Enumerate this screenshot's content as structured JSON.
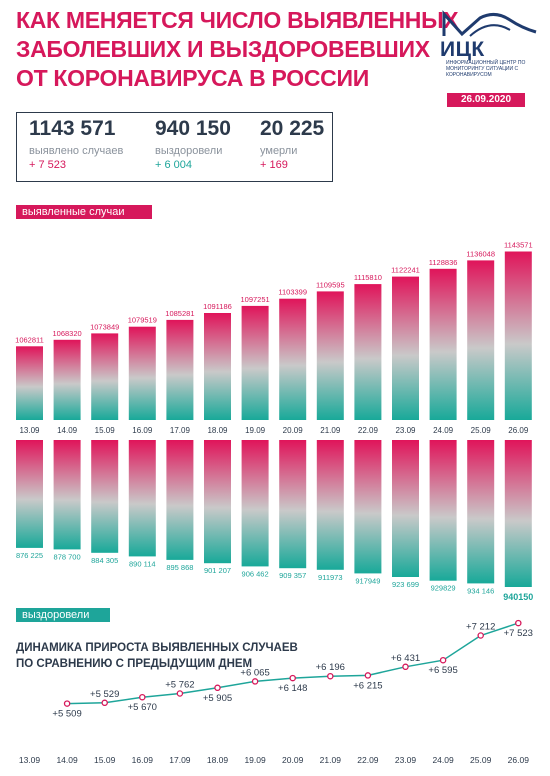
{
  "header": {
    "title_lines": [
      "КАК МЕНЯЕТСЯ ЧИСЛО ВЫЯВЛЕННЫХ",
      "ЗАБОЛЕВШИХ И ВЫЗДОРОВЕВШИХ",
      "ОТ КОРОНАВИРУСА В РОССИИ"
    ],
    "logo_text": "ИЦК",
    "logo_subtitle": "ИНФОРМАЦИОННЫЙ ЦЕНТР ПО МОНИТОРИНГУ СИТУАЦИИ С КОРОНАВИРУСОМ",
    "date": "26.09.2020"
  },
  "stats": [
    {
      "value": "1143 571",
      "label": "выявлено случаев",
      "delta": "+ 7 523",
      "delta_color": "#d6185b"
    },
    {
      "value": "940 150",
      "label": "выздоровели",
      "delta": "+ 6 004",
      "delta_color": "#1ea59a"
    },
    {
      "value": "20 225",
      "label": "умерли",
      "delta": "+ 169",
      "delta_color": "#d6185b"
    }
  ],
  "tags": {
    "cases": "выявленные случаи",
    "recovered": "выздоровели"
  },
  "subtitle_lines": [
    "ДИНАМИКА ПРИРОСТА ВЫЯВЛЕННЫХ СЛУЧАЕВ",
    "ПО СРАВНЕНИЮ С ПРЕДЫДУЩИМ ДНЕМ"
  ],
  "colors": {
    "pink": "#d6185b",
    "teal": "#1ea59a",
    "dark": "#2d3a4b"
  },
  "chart_data": [
    {
      "type": "bar",
      "categories": [
        "13.09",
        "14.09",
        "15.09",
        "16.09",
        "17.09",
        "18.09",
        "19.09",
        "20.09",
        "21.09",
        "22.09",
        "23.09",
        "24.09",
        "25.09",
        "26.09"
      ],
      "values": [
        1062811,
        1068320,
        1073849,
        1079519,
        1085281,
        1091186,
        1097251,
        1103399,
        1109595,
        1115810,
        1122241,
        1128836,
        1136048,
        1143571
      ],
      "value_labels": [
        "1062811",
        "1068320",
        "1073849",
        "1079519",
        "1085281",
        "1091186",
        "1097251",
        "1103399",
        "1109595",
        "1115810",
        "1122241",
        "1128836",
        "1136048",
        "1143571"
      ],
      "series_label": "выявленные случаи"
    },
    {
      "type": "bar",
      "categories": [
        "13.09",
        "14.09",
        "15.09",
        "16.09",
        "17.09",
        "18.09",
        "19.09",
        "20.09",
        "21.09",
        "22.09",
        "23.09",
        "24.09",
        "25.09",
        "26.09"
      ],
      "values": [
        876225,
        878700,
        884305,
        890114,
        895868,
        901207,
        906462,
        909357,
        911973,
        917949,
        923699,
        929829,
        934146,
        940150
      ],
      "value_labels": [
        "876 225",
        "878 700",
        "884 305",
        "890 114",
        "895 868",
        "901 207",
        "906 462",
        "909 357",
        "911973",
        "917949",
        "923 699",
        "929829",
        "934 146",
        "940150"
      ],
      "series_label": "выздоровели"
    },
    {
      "type": "line",
      "x": [
        "13.09",
        "14.09",
        "15.09",
        "16.09",
        "17.09",
        "18.09",
        "19.09",
        "20.09",
        "21.09",
        "22.09",
        "23.09",
        "24.09",
        "25.09",
        "26.09"
      ],
      "values": [
        null,
        5509,
        5529,
        5670,
        5762,
        5905,
        6065,
        6148,
        6196,
        6215,
        6431,
        6595,
        7212,
        7523
      ],
      "value_labels": [
        "",
        "+5 509",
        "+5 529",
        "+5 670",
        "+5 762",
        "+5 905",
        "+6 065",
        "+6 148",
        "+6 196",
        "+6 215",
        "+6 431",
        "+6 595",
        "+7 212",
        "+7 523"
      ],
      "label_positions": [
        "",
        "below",
        "above",
        "below",
        "above",
        "below",
        "above",
        "below",
        "above",
        "below",
        "above",
        "below",
        "above",
        "below"
      ],
      "title": "ДИНАМИКА ПРИРОСТА ВЫЯВЛЕННЫХ СЛУЧАЕВ ПО СРАВНЕНИЮ С ПРЕДЫДУЩИМ ДНЕМ"
    }
  ]
}
